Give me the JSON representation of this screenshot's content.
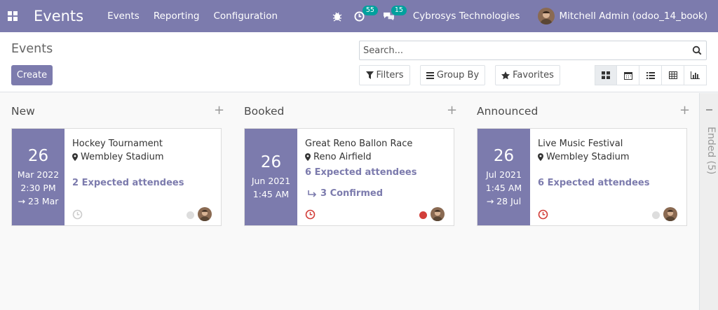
{
  "navbar": {
    "app_title": "Events",
    "menu": [
      "Events",
      "Reporting",
      "Configuration"
    ],
    "activity_count": "55",
    "message_count": "15",
    "company": "Cybrosys Technologies",
    "user": "Mitchell Admin (odoo_14_book)"
  },
  "control": {
    "page_title": "Events",
    "create_label": "Create",
    "search_placeholder": "Search...",
    "filters_label": "Filters",
    "groupby_label": "Group By",
    "favorites_label": "Favorites",
    "views": [
      "kanban-view-icon",
      "calendar-view-icon",
      "list-view-icon",
      "pivot-view-icon",
      "graph-view-icon"
    ]
  },
  "kanban": {
    "columns": [
      {
        "title": "New",
        "card": {
          "day": "26",
          "date_lines": [
            "Mar 2022",
            "2:30 PM",
            "→ 23 Mar"
          ],
          "name": "Hockey Tournament",
          "location": "Wembley Stadium",
          "attendees": "2 Expected attendees",
          "confirmed": "",
          "status_color": "#dddddd"
        }
      },
      {
        "title": "Booked",
        "card": {
          "day": "26",
          "date_lines": [
            "Jun 2021",
            "1:45 AM"
          ],
          "name": "Great Reno Ballon Race",
          "location": "Reno Airfield",
          "attendees": "6 Expected attendees",
          "confirmed": "3 Confirmed",
          "status_color": "#d23f3a"
        }
      },
      {
        "title": "Announced",
        "card": {
          "day": "26",
          "date_lines": [
            "Jul 2021",
            "1:45 AM",
            "→ 28 Jul"
          ],
          "name": "Live Music Festival",
          "location": "Wembley Stadium",
          "attendees": "6 Expected attendees",
          "confirmed": "",
          "status_color": "#dddddd"
        }
      }
    ],
    "folded_column": "Ended (5)"
  },
  "colors": {
    "brand": "#7c7bad",
    "danger": "#d23f3a",
    "badge": "#00a09d"
  }
}
